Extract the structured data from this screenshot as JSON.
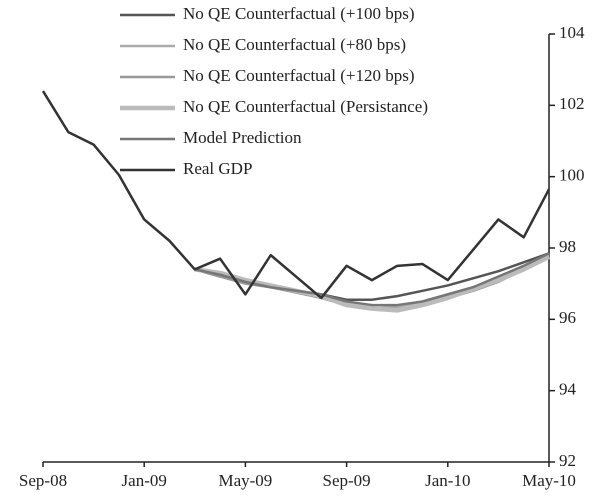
{
  "chart_data": {
    "type": "line",
    "categories": [
      "Sep-08",
      null,
      null,
      null,
      "Jan-09",
      null,
      null,
      null,
      "May-09",
      null,
      null,
      null,
      "Sep-09",
      null,
      null,
      null,
      "Jan-10",
      null,
      null,
      null,
      "May-10"
    ],
    "series": [
      {
        "name": "No QE Counterfactual (+100 bps)",
        "color": "#555555",
        "width": 2.5,
        "values": [
          null,
          null,
          null,
          null,
          null,
          null,
          97.4,
          97.2,
          97.05,
          96.9,
          96.8,
          96.7,
          96.55,
          96.55,
          96.65,
          96.8,
          96.95,
          97.15,
          97.35,
          97.6,
          97.85
        ]
      },
      {
        "name": "No QE Counterfactual (+80 bps)",
        "color": "#aaaaaa",
        "width": 2.5,
        "values": [
          null,
          null,
          null,
          null,
          null,
          null,
          97.4,
          97.25,
          97.05,
          96.9,
          96.8,
          96.6,
          96.4,
          96.3,
          96.35,
          96.5,
          96.7,
          96.9,
          97.15,
          97.45,
          97.8
        ]
      },
      {
        "name": "No QE Counterfactual (+120 bps)",
        "color": "#999999",
        "width": 2.5,
        "values": [
          null,
          null,
          null,
          null,
          null,
          null,
          97.4,
          97.2,
          97.0,
          96.9,
          96.75,
          96.6,
          96.4,
          96.3,
          96.25,
          96.4,
          96.6,
          96.8,
          97.05,
          97.4,
          97.75
        ]
      },
      {
        "name": "No QE Counterfactual (Persistance)",
        "color": "#bbbbbb",
        "width": 4.5,
        "values": [
          null,
          null,
          null,
          null,
          null,
          null,
          97.4,
          97.3,
          97.1,
          96.95,
          96.8,
          96.65,
          96.4,
          96.3,
          96.25,
          96.4,
          96.6,
          96.85,
          97.1,
          97.4,
          97.75
        ]
      },
      {
        "name": "Model Prediction",
        "color": "#777777",
        "width": 2.5,
        "values": [
          null,
          null,
          null,
          null,
          null,
          null,
          97.4,
          97.25,
          97.05,
          96.9,
          96.8,
          96.7,
          96.5,
          96.4,
          96.4,
          96.5,
          96.7,
          96.9,
          97.2,
          97.5,
          97.85
        ]
      },
      {
        "name": "Real GDP",
        "color": "#333333",
        "width": 2.5,
        "values": [
          102.4,
          101.25,
          100.9,
          100.05,
          98.8,
          98.2,
          97.4,
          97.7,
          96.7,
          97.8,
          97.2,
          96.6,
          97.5,
          97.1,
          97.5,
          97.55,
          97.1,
          97.95,
          98.8,
          98.3,
          99.65
        ]
      }
    ],
    "ylim": [
      92,
      104
    ],
    "yticks": [
      92,
      94,
      96,
      98,
      100,
      102,
      104
    ],
    "y_axis_side": "right",
    "legend": "upper left"
  }
}
